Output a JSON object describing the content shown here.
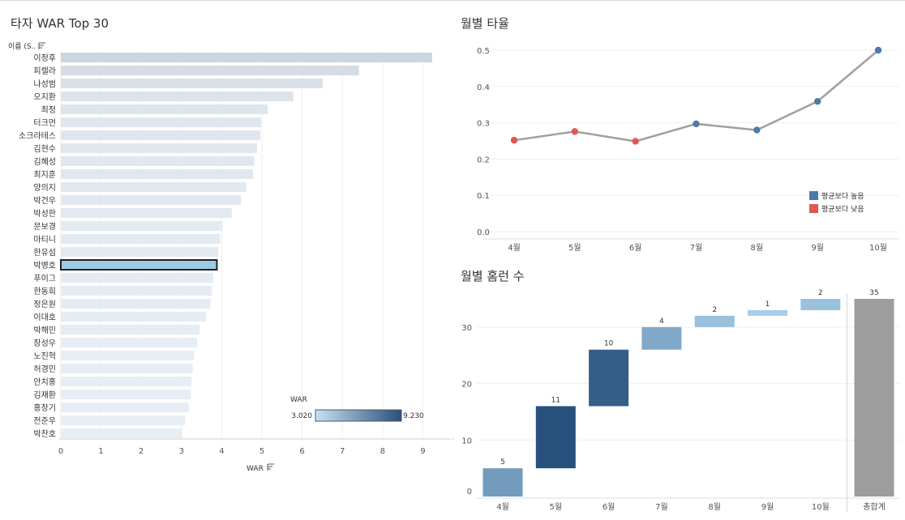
{
  "chart_data": [
    {
      "type": "bar",
      "orientation": "horizontal",
      "title": "타자 WAR Top 30",
      "row_header": "이름 (S..",
      "xlabel": "WAR",
      "xlim": [
        0,
        9.3
      ],
      "xticks": [
        0,
        1,
        2,
        3,
        4,
        5,
        6,
        7,
        8,
        9
      ],
      "grid": true,
      "selected": "박병호",
      "color_legend": {
        "title": "WAR",
        "min_label": "3.020",
        "max_label": "9.230",
        "low_color": "#c7e1f1",
        "high_color": "#27507d"
      },
      "categories": [
        "이정후",
        "피렐라",
        "나성범",
        "오지환",
        "최정",
        "터크먼",
        "소크라테스",
        "김현수",
        "김혜성",
        "최지훈",
        "양의지",
        "박건우",
        "박성한",
        "문보경",
        "마티니",
        "한유섬",
        "박병호",
        "푸이그",
        "한동희",
        "정은원",
        "이대호",
        "박해민",
        "장성우",
        "노진혁",
        "허경민",
        "안치홍",
        "김재환",
        "홍창기",
        "전준우",
        "박찬호"
      ],
      "values": [
        9.23,
        7.41,
        6.51,
        5.78,
        5.14,
        4.98,
        4.96,
        4.88,
        4.81,
        4.78,
        4.61,
        4.48,
        4.25,
        4.02,
        3.96,
        3.91,
        3.88,
        3.79,
        3.76,
        3.72,
        3.61,
        3.45,
        3.39,
        3.31,
        3.28,
        3.25,
        3.23,
        3.18,
        3.09,
        3.02
      ]
    },
    {
      "type": "line",
      "title": "월별 타율",
      "categories": [
        "4월",
        "5월",
        "6월",
        "7월",
        "8월",
        "9월",
        "10월"
      ],
      "values": [
        0.252,
        0.276,
        0.249,
        0.297,
        0.28,
        0.359,
        0.5
      ],
      "ylim": [
        0,
        0.5
      ],
      "yticks": [
        "0.0",
        "0.1",
        "0.2",
        "0.3",
        "0.4",
        "0.5"
      ],
      "line_color": "#a0a0a0",
      "legend_position": "bottom-right",
      "legend": [
        {
          "label": "평균보다 높음",
          "color": "#4e79a7"
        },
        {
          "label": "평균보다 낮음",
          "color": "#e15759"
        }
      ],
      "point_status": [
        "low",
        "low",
        "low",
        "high",
        "high",
        "high",
        "high"
      ]
    },
    {
      "type": "bar",
      "subtype": "waterfall",
      "title": "월별 홈런 수",
      "categories": [
        "4월",
        "5월",
        "6월",
        "7월",
        "8월",
        "9월",
        "10월"
      ],
      "values": [
        5,
        11,
        10,
        4,
        2,
        1,
        2
      ],
      "total_label": "총합계",
      "total": 35,
      "ylim": [
        0,
        36
      ],
      "yticks": [
        0,
        10,
        20,
        30
      ],
      "total_color": "#9d9d9d"
    }
  ]
}
